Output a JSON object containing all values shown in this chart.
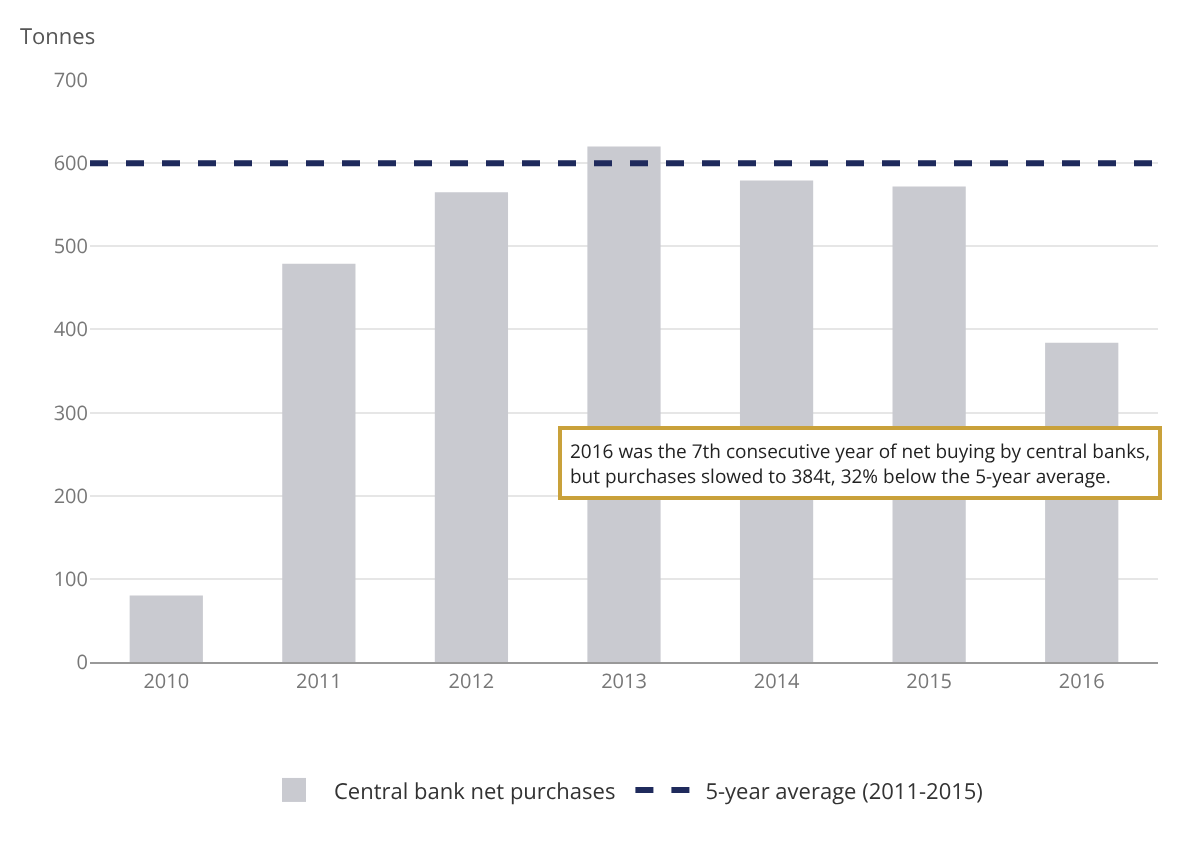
{
  "chart_data": {
    "type": "bar",
    "ylabel": "Tonnes",
    "categories": [
      "2010",
      "2011",
      "2012",
      "2013",
      "2014",
      "2015",
      "2016"
    ],
    "series": [
      {
        "name": "Central bank net purchases",
        "color": "#c9cad0",
        "values": [
          80,
          479,
          565,
          620,
          579,
          572,
          384
        ]
      }
    ],
    "ylim": [
      0,
      700
    ],
    "yticks": [
      0,
      100,
      200,
      300,
      400,
      500,
      600,
      700
    ],
    "grid": "y",
    "legend": "bottom",
    "ref_lines": [
      {
        "axis": "y",
        "value": 600,
        "label": "5-year average (2011-2015)",
        "color": "#1f2a5c",
        "line_style": "dashed"
      }
    ],
    "annotations": [
      "2016 was the 7th consecutive year of net buying by central banks, but purchases slowed to 384t, 32% below the 5-year average."
    ]
  }
}
